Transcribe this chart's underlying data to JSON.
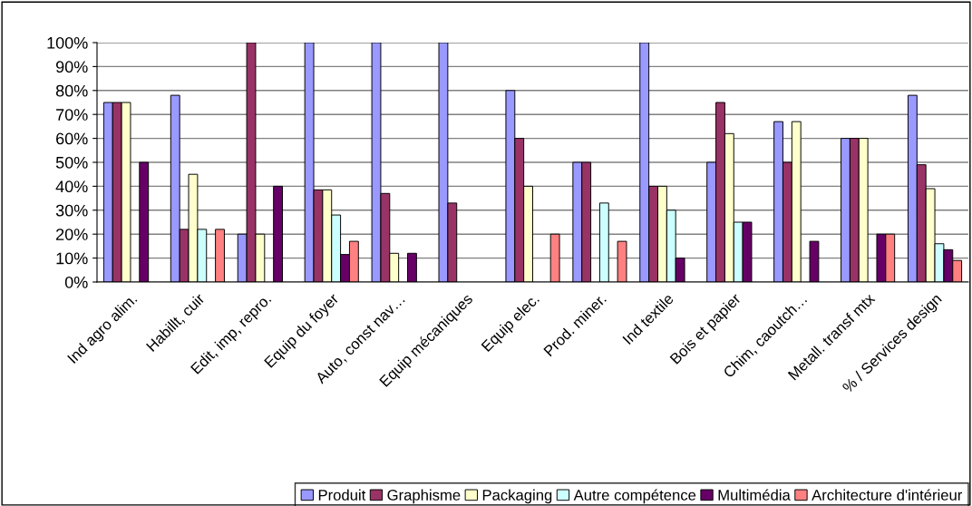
{
  "chart_data": {
    "type": "bar",
    "categories": [
      "Ind agro alim.",
      "Habillt, cuir",
      "Edit, imp, repro.",
      "Equip du foyer",
      "Auto, const nav…",
      "Equip mécaniques",
      "Equip elec.",
      "Prod. miner.",
      "Ind textile",
      "Bois et papier",
      "Chim, caoutch…",
      "Metall. transf mtx",
      "% / Services design"
    ],
    "series": [
      {
        "name": "Produit",
        "color": "#9999ff",
        "values": [
          75,
          78,
          20,
          100,
          100,
          100,
          80,
          50,
          100,
          50,
          67,
          60,
          78
        ]
      },
      {
        "name": "Graphisme",
        "color": "#993366",
        "values": [
          75,
          22,
          100,
          38.5,
          37,
          33,
          60,
          50,
          40,
          75,
          50,
          60,
          49
        ]
      },
      {
        "name": "Packaging",
        "color": "#ffffcc",
        "values": [
          75,
          45,
          20,
          38.5,
          12,
          null,
          40,
          null,
          40,
          62,
          67,
          60,
          39
        ]
      },
      {
        "name": "Autre compétence",
        "color": "#ccffff",
        "values": [
          null,
          22,
          null,
          28,
          null,
          null,
          null,
          33,
          30,
          25,
          null,
          null,
          16
        ]
      },
      {
        "name": "Multimédia",
        "color": "#660066",
        "values": [
          50,
          null,
          40,
          11.5,
          12,
          null,
          null,
          null,
          10,
          25,
          17,
          20,
          13.5
        ]
      },
      {
        "name": "Architecture d'intérieur",
        "color": "#ff8080",
        "values": [
          null,
          22,
          null,
          17,
          null,
          null,
          20,
          17,
          null,
          null,
          null,
          20,
          9
        ]
      }
    ],
    "ylim": [
      0,
      100
    ],
    "yticks": [
      {
        "value": 0,
        "label": "0%"
      },
      {
        "value": 10,
        "label": "10%"
      },
      {
        "value": 20,
        "label": "20%"
      },
      {
        "value": 30,
        "label": "30%"
      },
      {
        "value": 40,
        "label": "40%"
      },
      {
        "value": 50,
        "label": "50%"
      },
      {
        "value": 60,
        "label": "60%"
      },
      {
        "value": 70,
        "label": "70%"
      },
      {
        "value": 80,
        "label": "80%"
      },
      {
        "value": 90,
        "label": "90%"
      },
      {
        "value": 100,
        "label": "100%"
      }
    ],
    "grid": "y",
    "legend": "bottom"
  }
}
